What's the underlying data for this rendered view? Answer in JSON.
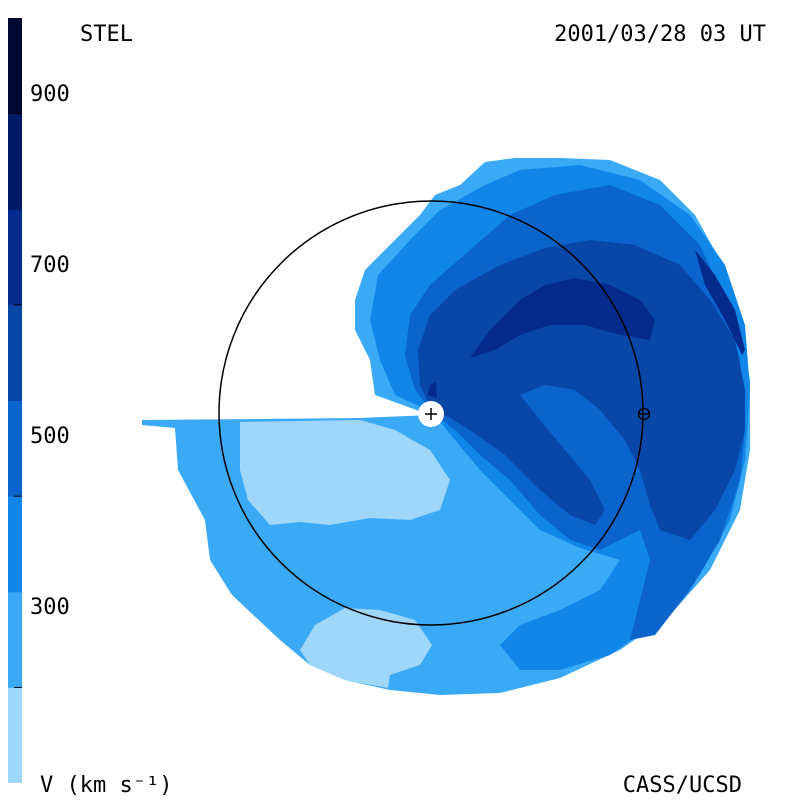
{
  "header": {
    "source": "STEL",
    "datetime": "2001/03/28 03 UT"
  },
  "footer": {
    "credit": "CASS/UCSD",
    "unit_label": "V (km s⁻¹)"
  },
  "colorbar": {
    "tick_labels": [
      "900",
      "700",
      "500",
      "300"
    ],
    "min": 200,
    "max": 1000,
    "levels": [
      {
        "from": 200,
        "to": 300,
        "color": "#9fd7fb"
      },
      {
        "from": 300,
        "to": 400,
        "color": "#3aaaf6"
      },
      {
        "from": 400,
        "to": 500,
        "color": "#0f86e8"
      },
      {
        "from": 500,
        "to": 600,
        "color": "#0a64cc"
      },
      {
        "from": 600,
        "to": 700,
        "color": "#0846a8"
      },
      {
        "from": 700,
        "to": 800,
        "color": "#032a8c"
      },
      {
        "from": 800,
        "to": 900,
        "color": "#001a66"
      },
      {
        "from": 900,
        "to": 1000,
        "color": "#000a30"
      }
    ]
  },
  "markers": {
    "sun": "sun-plus-icon",
    "earth": "earth-circle-cross-icon"
  }
}
